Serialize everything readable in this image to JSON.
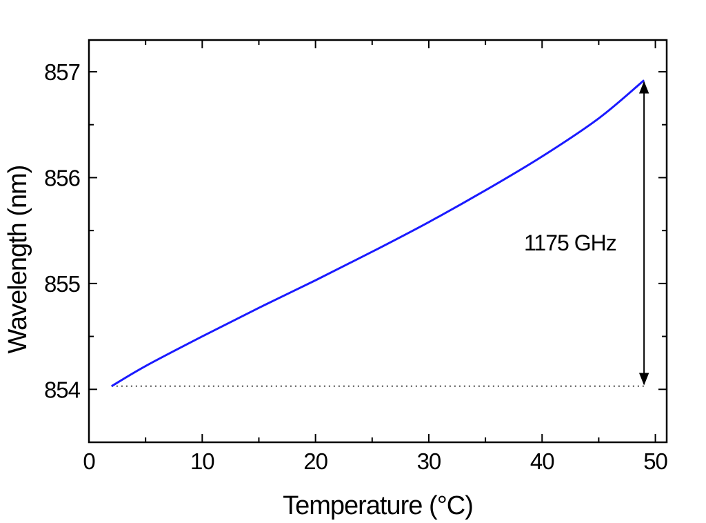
{
  "chart_data": {
    "type": "line",
    "title": "",
    "xlabel": "Temperature (°C)",
    "ylabel": "Wavelength (nm)",
    "xlim": [
      0,
      51
    ],
    "ylim": [
      853.5,
      857.3
    ],
    "x_ticks": [
      0,
      10,
      20,
      30,
      40,
      50
    ],
    "y_ticks": [
      854,
      855,
      856,
      857
    ],
    "x_tick_labels": [
      "0",
      "10",
      "20",
      "30",
      "40",
      "50"
    ],
    "y_tick_labels": [
      "854",
      "855",
      "856",
      "857"
    ],
    "grid": false,
    "legend": "none",
    "series": [
      {
        "color": "#1a1aff",
        "x": [
          2,
          5,
          10,
          15,
          20,
          25,
          30,
          35,
          40,
          45,
          49
        ],
        "y": [
          854.03,
          854.22,
          854.5,
          854.77,
          855.03,
          855.3,
          855.58,
          855.88,
          856.2,
          856.56,
          856.92
        ]
      }
    ],
    "reference_line": {
      "y": 854.03,
      "x_start": 2,
      "x_end": 49,
      "style": "dotted",
      "color": "#555555"
    },
    "annotation": {
      "text": "1175 GHz",
      "x": 49,
      "y_from": 854.03,
      "y_to": 856.92,
      "type": "double-arrow"
    }
  }
}
